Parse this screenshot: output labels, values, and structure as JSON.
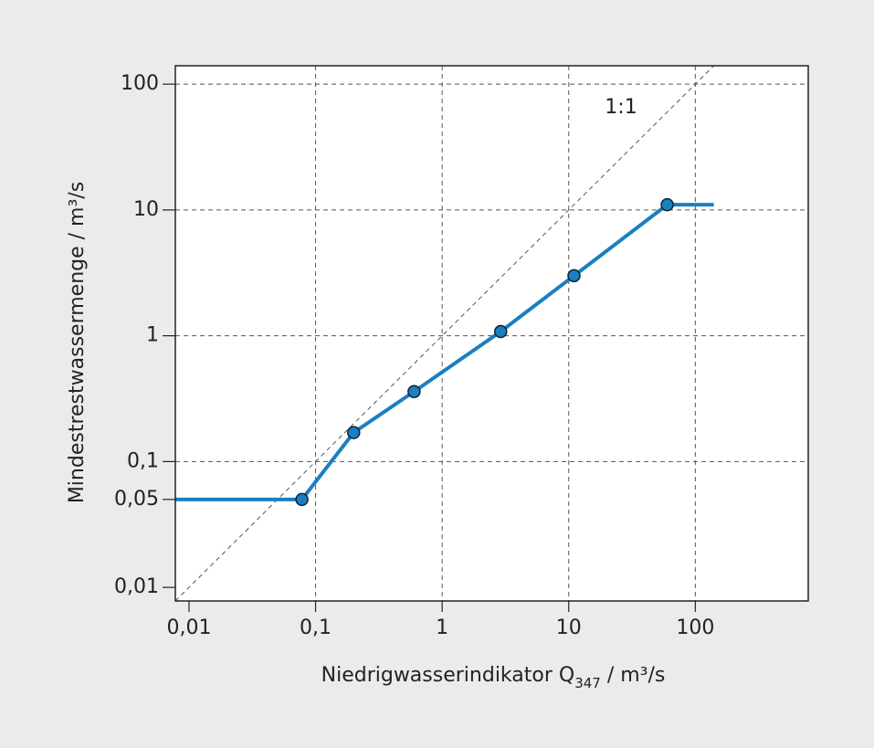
{
  "chart_data": {
    "type": "line",
    "xscale": "log",
    "yscale": "log",
    "xlabel": {
      "text": "Niedrigwasserindikator Q",
      "subscript": "347",
      "unit": " / m³/s"
    },
    "ylabel": "Mindestrestwassermenge  / m³/s",
    "annotation": "1:1",
    "xlim": [
      0.0078,
      780
    ],
    "ylim": [
      0.0078,
      140
    ],
    "xticks": [
      {
        "value": 0.01,
        "label": "0,01",
        "grid": false
      },
      {
        "value": 0.1,
        "label": "0,1",
        "grid": true
      },
      {
        "value": 1,
        "label": "1",
        "grid": true
      },
      {
        "value": 10,
        "label": "10",
        "grid": true
      },
      {
        "value": 100,
        "label": "100",
        "grid": true
      }
    ],
    "yticks": [
      {
        "value": 0.01,
        "label": "0,01",
        "grid": false
      },
      {
        "value": 0.05,
        "label": "0,05",
        "grid": false
      },
      {
        "value": 0.1,
        "label": "0,1",
        "grid": true
      },
      {
        "value": 1,
        "label": "1",
        "grid": true
      },
      {
        "value": 10,
        "label": "10",
        "grid": true
      },
      {
        "value": 100,
        "label": "100",
        "grid": true
      }
    ],
    "series": [
      {
        "color": "#1a7fc1",
        "x": [
          0.0078,
          0.078,
          0.2,
          0.6,
          2.9,
          11,
          60,
          140
        ],
        "values": [
          0.05,
          0.05,
          0.17,
          0.36,
          1.08,
          3,
          11,
          11
        ]
      }
    ]
  }
}
